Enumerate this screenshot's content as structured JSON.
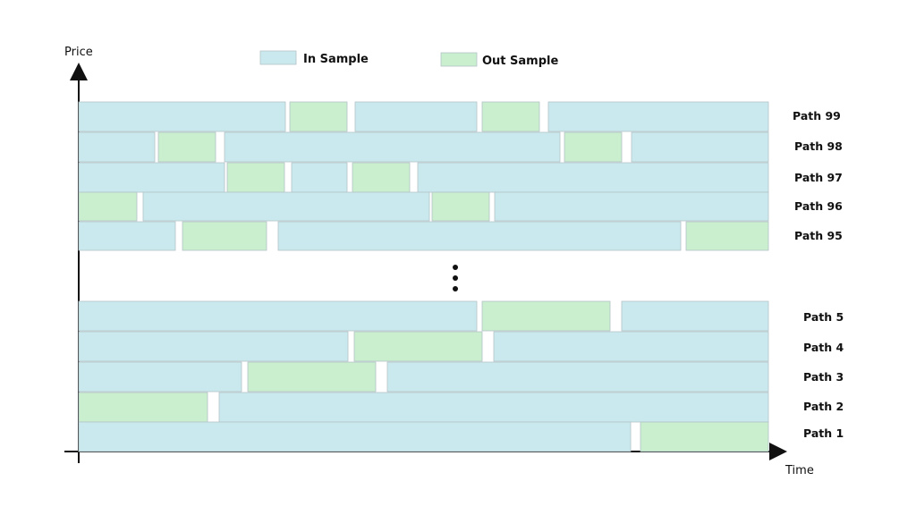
{
  "axes": {
    "y_label": "Price",
    "x_label": "Time"
  },
  "legend": [
    {
      "label": "In Sample",
      "kind": "in"
    },
    {
      "label": "Out Sample",
      "kind": "out"
    }
  ],
  "colors": {
    "in_sample": "#c9e9ee",
    "out_sample": "#c9efcf",
    "axis": "#111111"
  },
  "ellipsis_icon": "vertical-ellipsis-icon",
  "upper_paths": [
    {
      "label": "Path 99",
      "segments": [
        "in",
        "out",
        "in",
        "out",
        "in"
      ]
    },
    {
      "label": "Path 98",
      "segments": [
        "in",
        "out",
        "in",
        "out",
        "in"
      ]
    },
    {
      "label": "Path 97",
      "segments": [
        "in",
        "out",
        "in",
        "out",
        "in"
      ]
    },
    {
      "label": "Path 96",
      "segments": [
        "out",
        "in",
        "out",
        "in"
      ]
    },
    {
      "label": "Path 95",
      "segments": [
        "in",
        "out",
        "in",
        "out"
      ]
    }
  ],
  "lower_paths": [
    {
      "label": "Path 5",
      "segments": [
        "in",
        "out",
        "in"
      ]
    },
    {
      "label": "Path 4",
      "segments": [
        "in",
        "out",
        "in"
      ]
    },
    {
      "label": "Path 3",
      "segments": [
        "in",
        "out",
        "in"
      ]
    },
    {
      "label": "Path 2",
      "segments": [
        "out",
        "in"
      ]
    },
    {
      "label": "Path 1",
      "segments": [
        "in",
        "out"
      ]
    }
  ]
}
